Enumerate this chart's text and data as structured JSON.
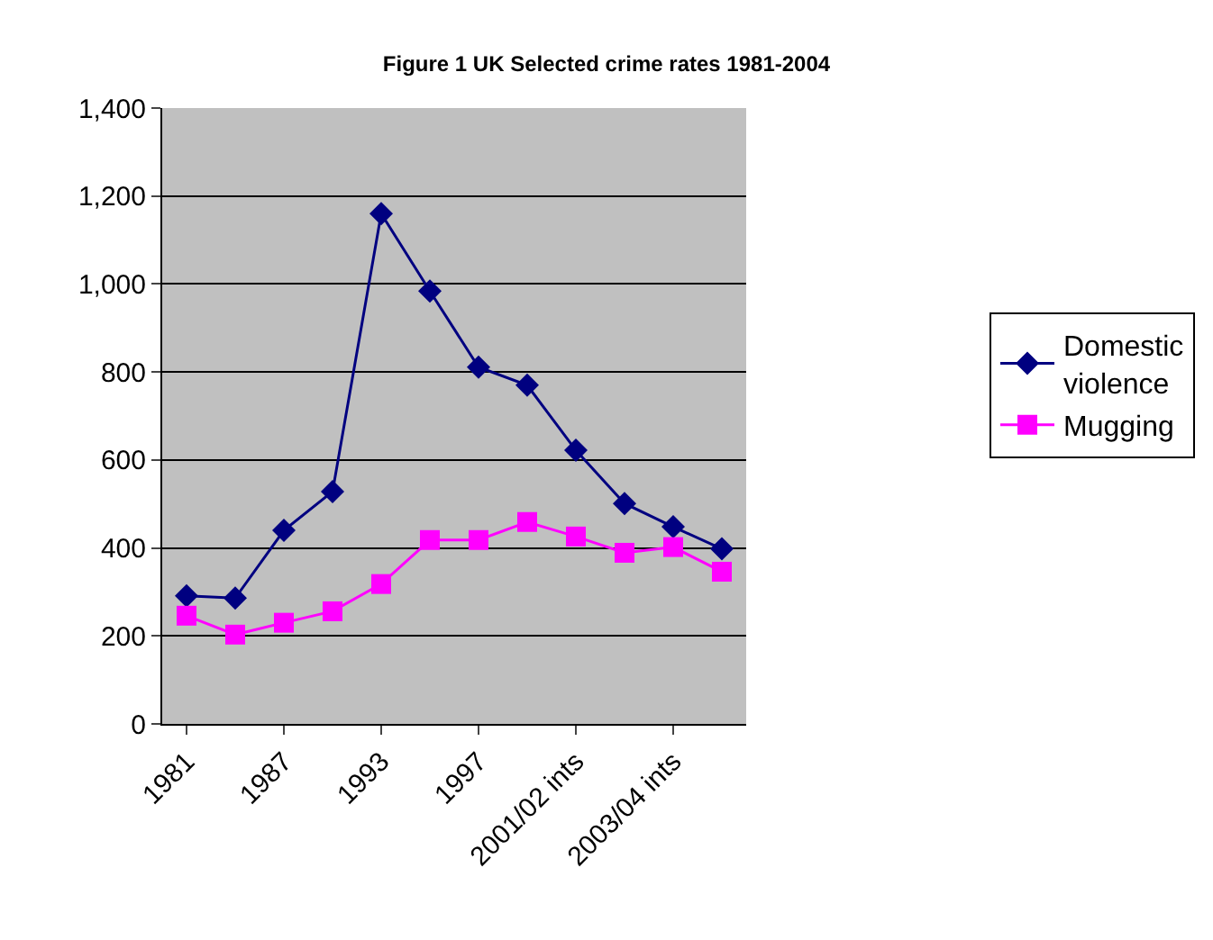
{
  "chart_data": {
    "type": "line",
    "title": "Figure 1 UK Selected crime rates 1981-2004",
    "categories": [
      "1981",
      null,
      "1987",
      null,
      "1993",
      null,
      "1997",
      null,
      "2001/02 ints",
      null,
      "2003/04 ints",
      null
    ],
    "series": [
      {
        "name": "Domestic violence",
        "color": "#000080",
        "marker": "diamond",
        "values": [
          291,
          286,
          440,
          528,
          1160,
          984,
          811,
          770,
          622,
          501,
          448,
          398
        ]
      },
      {
        "name": "Mugging",
        "color": "#ff00ff",
        "marker": "square",
        "values": [
          246,
          203,
          230,
          256,
          318,
          418,
          418,
          459,
          426,
          389,
          402,
          346
        ]
      }
    ],
    "ylim": [
      0,
      1400
    ],
    "yticks": [
      0,
      200,
      400,
      600,
      800,
      {
        "value": 1000,
        "label": "1,000"
      },
      {
        "value": 1200,
        "label": "1,200"
      },
      {
        "value": 1400,
        "label": "1,400"
      }
    ],
    "grid": "y",
    "legend": "right",
    "line_style": "solid"
  }
}
